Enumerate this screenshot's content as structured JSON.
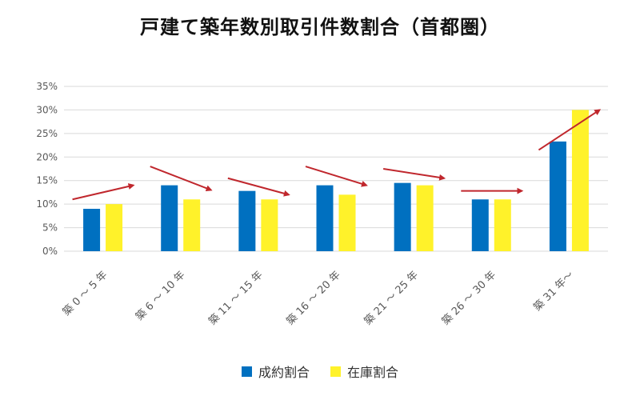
{
  "chart_data": {
    "type": "bar",
    "title": "戸建て築年数別取引件数割合（首都圏）",
    "categories": [
      "築 0 ～ 5 年",
      "築 6 ～ 10 年",
      "築 11 ～ 15 年",
      "築 16 ～ 20 年",
      "築 21 ～ 25 年",
      "築 26 ～ 30 年",
      "築 31 年～"
    ],
    "series": [
      {
        "name": "成約割合",
        "values": [
          9,
          14,
          12.8,
          14,
          14.5,
          11,
          23.3
        ],
        "color": "#0070C0"
      },
      {
        "name": "在庫割合",
        "values": [
          10,
          11,
          11,
          12,
          14,
          11,
          30
        ],
        "color": "#FFF22A"
      }
    ],
    "ylim": [
      0,
      35
    ],
    "yticks": [
      0,
      5,
      10,
      15,
      20,
      25,
      30,
      35
    ],
    "yticklabels": [
      "0%",
      "5%",
      "10%",
      "15%",
      "20%",
      "25%",
      "30%",
      "35%"
    ],
    "grid": true,
    "legend_position": "bottom",
    "annotations": {
      "type": "trend-arrows",
      "color": "#C0272D",
      "arrows": [
        {
          "category": 0,
          "from": 11,
          "to": 14
        },
        {
          "category": 1,
          "from": 18,
          "to": 13
        },
        {
          "category": 2,
          "from": 15.5,
          "to": 12
        },
        {
          "category": 3,
          "from": 18,
          "to": 14
        },
        {
          "category": 4,
          "from": 17.5,
          "to": 15.5
        },
        {
          "category": 5,
          "from": 12.8,
          "to": 12.8
        },
        {
          "category": 6,
          "from": 21.5,
          "to": 30
        }
      ]
    }
  }
}
